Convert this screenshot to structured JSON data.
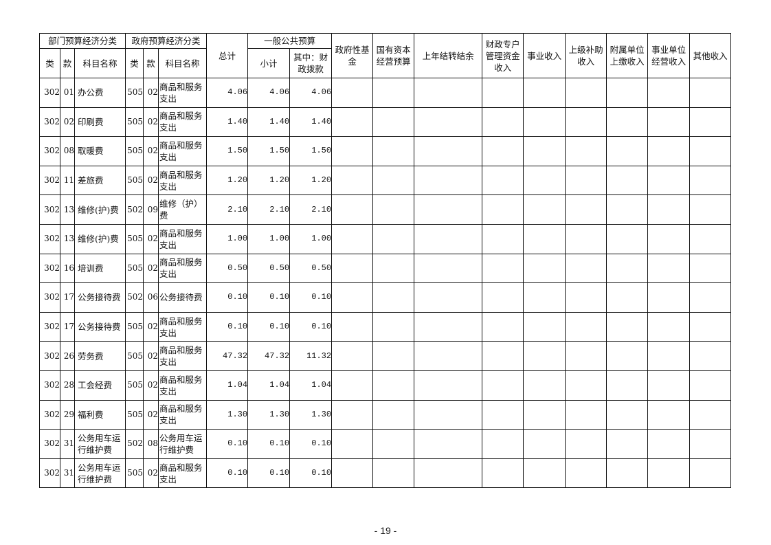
{
  "header": {
    "dept_group": "部门预算经济分类",
    "gov_group": "政府预算经济分类",
    "lei": "类",
    "kuan": "款",
    "subject_name": "科目名称",
    "total": "总计",
    "general_budget": "一般公共预算",
    "subtotal": "小计",
    "fiscal_alloc": "其中：财政拨款",
    "gov_fund": "政府性基金",
    "state_capital": "国有资本经营预算",
    "prior_carryover": "上年结转结余",
    "fiscal_special": "财政专户管理资金收入",
    "business_income": "事业收入",
    "superior_subsidy": "上级补助收入",
    "affiliate_income": "附属单位上缴收入",
    "operating_income": "事业单位经营收入",
    "other_income": "其他收入"
  },
  "rows": [
    {
      "lei": "302",
      "kuan": "01",
      "name": "办公费",
      "glei": "505",
      "gkuan": "02",
      "gname": "商品和服务支出",
      "total": "4.06",
      "subtotal": "4.06",
      "fiscal": "4.06"
    },
    {
      "lei": "302",
      "kuan": "02",
      "name": "印刷费",
      "glei": "505",
      "gkuan": "02",
      "gname": "商品和服务支出",
      "total": "1.40",
      "subtotal": "1.40",
      "fiscal": "1.40"
    },
    {
      "lei": "302",
      "kuan": "08",
      "name": "取暖费",
      "glei": "505",
      "gkuan": "02",
      "gname": "商品和服务支出",
      "total": "1.50",
      "subtotal": "1.50",
      "fiscal": "1.50"
    },
    {
      "lei": "302",
      "kuan": "11",
      "name": "差旅费",
      "glei": "505",
      "gkuan": "02",
      "gname": "商品和服务支出",
      "total": "1.20",
      "subtotal": "1.20",
      "fiscal": "1.20"
    },
    {
      "lei": "302",
      "kuan": "13",
      "name": "维修(护)费",
      "glei": "502",
      "gkuan": "09",
      "gname": "维修（护）费",
      "total": "2.10",
      "subtotal": "2.10",
      "fiscal": "2.10"
    },
    {
      "lei": "302",
      "kuan": "13",
      "name": "维修(护)费",
      "glei": "505",
      "gkuan": "02",
      "gname": "商品和服务支出",
      "total": "1.00",
      "subtotal": "1.00",
      "fiscal": "1.00"
    },
    {
      "lei": "302",
      "kuan": "16",
      "name": "培训费",
      "glei": "505",
      "gkuan": "02",
      "gname": "商品和服务支出",
      "total": "0.50",
      "subtotal": "0.50",
      "fiscal": "0.50"
    },
    {
      "lei": "302",
      "kuan": "17",
      "name": "公务接待费",
      "glei": "502",
      "gkuan": "06",
      "gname": "公务接待费",
      "total": "0.10",
      "subtotal": "0.10",
      "fiscal": "0.10"
    },
    {
      "lei": "302",
      "kuan": "17",
      "name": "公务接待费",
      "glei": "505",
      "gkuan": "02",
      "gname": "商品和服务支出",
      "total": "0.10",
      "subtotal": "0.10",
      "fiscal": "0.10"
    },
    {
      "lei": "302",
      "kuan": "26",
      "name": "劳务费",
      "glei": "505",
      "gkuan": "02",
      "gname": "商品和服务支出",
      "total": "47.32",
      "subtotal": "47.32",
      "fiscal": "11.32"
    },
    {
      "lei": "302",
      "kuan": "28",
      "name": "工会经费",
      "glei": "505",
      "gkuan": "02",
      "gname": "商品和服务支出",
      "total": "1.04",
      "subtotal": "1.04",
      "fiscal": "1.04"
    },
    {
      "lei": "302",
      "kuan": "29",
      "name": "福利费",
      "glei": "505",
      "gkuan": "02",
      "gname": "商品和服务支出",
      "total": "1.30",
      "subtotal": "1.30",
      "fiscal": "1.30"
    },
    {
      "lei": "302",
      "kuan": "31",
      "name": "公务用车运行维护费",
      "glei": "502",
      "gkuan": "08",
      "gname": "公务用车运行维护费",
      "total": "0.10",
      "subtotal": "0.10",
      "fiscal": "0.10"
    },
    {
      "lei": "302",
      "kuan": "31",
      "name": "公务用车运行维护费",
      "glei": "505",
      "gkuan": "02",
      "gname": "商品和服务支出",
      "total": "0.10",
      "subtotal": "0.10",
      "fiscal": "0.10"
    }
  ],
  "page_number": "- 19 -"
}
